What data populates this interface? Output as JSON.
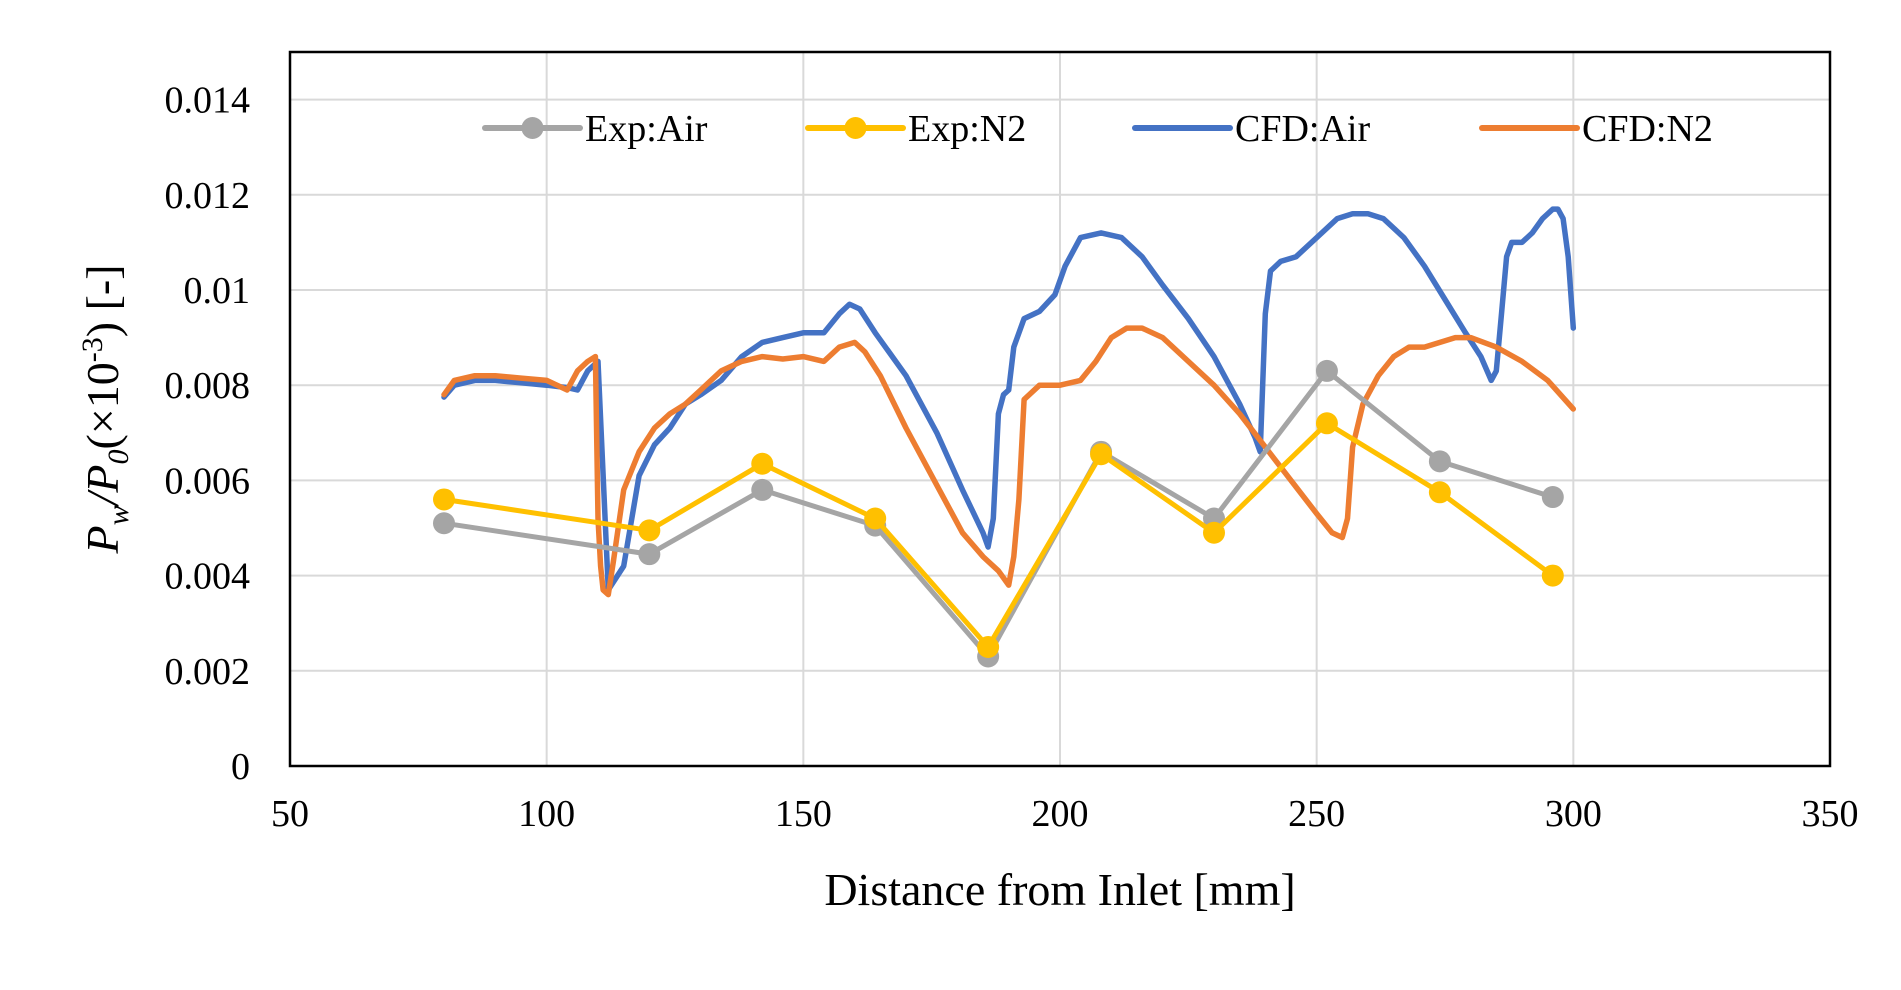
{
  "chart_data": {
    "type": "line",
    "title": "",
    "xlabel": "Distance from Inlet [mm]",
    "ylabel": {
      "p1": "P",
      "p1_sub": "w",
      "slash": "/",
      "p2": "P",
      "p2_sub": "0",
      "rest_open": "(×10",
      "rest_sup": "-3",
      "rest_close": ") [-]"
    },
    "xlim": [
      50,
      350
    ],
    "ylim": [
      0,
      0.015
    ],
    "xticks": [
      50,
      100,
      150,
      200,
      250,
      300,
      350
    ],
    "xtick_labels": [
      "50",
      "100",
      "150",
      "200",
      "250",
      "300",
      "350"
    ],
    "yticks": [
      0,
      0.002,
      0.004,
      0.006,
      0.008,
      0.01,
      0.012,
      0.014
    ],
    "ytick_labels": [
      "0",
      "0.002",
      "0.004",
      "0.006",
      "0.008",
      "0.01",
      "0.012",
      "0.014"
    ],
    "grid": true,
    "legend_placement": "top",
    "series": [
      {
        "name": "Exp:Air",
        "color": "#a5a5a5",
        "markers": true,
        "x": [
          80,
          120,
          142,
          164,
          186,
          208,
          230,
          252,
          274,
          296
        ],
        "y": [
          0.0051,
          0.00445,
          0.0058,
          0.00505,
          0.0023,
          0.0066,
          0.0052,
          0.0083,
          0.0064,
          0.00565
        ]
      },
      {
        "name": "Exp:N2",
        "color": "#ffc000",
        "markers": true,
        "x": [
          80,
          120,
          142,
          164,
          186,
          208,
          230,
          252,
          274,
          296
        ],
        "y": [
          0.0056,
          0.00495,
          0.00635,
          0.0052,
          0.0025,
          0.00655,
          0.0049,
          0.0072,
          0.00575,
          0.004
        ]
      },
      {
        "name": "CFD:Air",
        "color": "#4472c4",
        "markers": false,
        "x": [
          80,
          82,
          86,
          90,
          95,
          100,
          104,
          106,
          108,
          110,
          112,
          115,
          118,
          121,
          124,
          127,
          130,
          134,
          138,
          142,
          146,
          150,
          154,
          157,
          159,
          161,
          164,
          170,
          176,
          181,
          185,
          186,
          187,
          188,
          189,
          190,
          191,
          193,
          196,
          199,
          201,
          204,
          208,
          212,
          216,
          220,
          225,
          230,
          235,
          238,
          239,
          240,
          241,
          243,
          246,
          250,
          254,
          257,
          260,
          263,
          267,
          271,
          275,
          279,
          282,
          284,
          285,
          286,
          287,
          288,
          290,
          292,
          294,
          296,
          297,
          298,
          299,
          300
        ],
        "y": [
          0.00775,
          0.008,
          0.0081,
          0.0081,
          0.00805,
          0.008,
          0.00795,
          0.0079,
          0.0083,
          0.0085,
          0.0037,
          0.0042,
          0.0061,
          0.00675,
          0.0071,
          0.0076,
          0.0078,
          0.0081,
          0.0086,
          0.0089,
          0.009,
          0.0091,
          0.0091,
          0.0095,
          0.0097,
          0.0096,
          0.0091,
          0.0082,
          0.007,
          0.0058,
          0.0049,
          0.0046,
          0.0052,
          0.0074,
          0.0078,
          0.0079,
          0.0088,
          0.0094,
          0.00955,
          0.0099,
          0.0105,
          0.0111,
          0.0112,
          0.0111,
          0.0107,
          0.0101,
          0.0094,
          0.0086,
          0.0076,
          0.0069,
          0.0066,
          0.0095,
          0.0104,
          0.0106,
          0.0107,
          0.0111,
          0.0115,
          0.0116,
          0.0116,
          0.0115,
          0.0111,
          0.0105,
          0.0098,
          0.0091,
          0.0086,
          0.0081,
          0.0083,
          0.0095,
          0.0107,
          0.011,
          0.011,
          0.0112,
          0.0115,
          0.0117,
          0.0117,
          0.0115,
          0.0107,
          0.0092
        ]
      },
      {
        "name": "CFD:N2",
        "color": "#ed7d31",
        "markers": false,
        "x": [
          80,
          82,
          86,
          90,
          95,
          100,
          104,
          106,
          108,
          109.5,
          110,
          110.5,
          111,
          112,
          113,
          115,
          118,
          121,
          124,
          127,
          130,
          134,
          138,
          142,
          146,
          150,
          154,
          157,
          160,
          162,
          165,
          170,
          176,
          181,
          185,
          188,
          190,
          191,
          192,
          193,
          196,
          200,
          204,
          207,
          210,
          213,
          216,
          220,
          225,
          230,
          235,
          240,
          245,
          250,
          253,
          255,
          256,
          257,
          259,
          262,
          265,
          268,
          271,
          274,
          277,
          280,
          285,
          290,
          295,
          300
        ],
        "y": [
          0.0078,
          0.0081,
          0.0082,
          0.0082,
          0.00815,
          0.0081,
          0.0079,
          0.0083,
          0.0085,
          0.0086,
          0.0052,
          0.0042,
          0.0037,
          0.0036,
          0.0043,
          0.0058,
          0.0066,
          0.0071,
          0.0074,
          0.0076,
          0.0079,
          0.0083,
          0.0085,
          0.0086,
          0.00855,
          0.0086,
          0.0085,
          0.0088,
          0.0089,
          0.0087,
          0.0082,
          0.0071,
          0.0059,
          0.0049,
          0.0044,
          0.0041,
          0.0038,
          0.0044,
          0.0056,
          0.0077,
          0.008,
          0.008,
          0.0081,
          0.0085,
          0.009,
          0.0092,
          0.0092,
          0.009,
          0.0085,
          0.008,
          0.0074,
          0.0067,
          0.006,
          0.0053,
          0.0049,
          0.0048,
          0.0052,
          0.0067,
          0.0076,
          0.0082,
          0.0086,
          0.0088,
          0.0088,
          0.0089,
          0.009,
          0.009,
          0.0088,
          0.0085,
          0.0081,
          0.0075
        ]
      }
    ]
  }
}
